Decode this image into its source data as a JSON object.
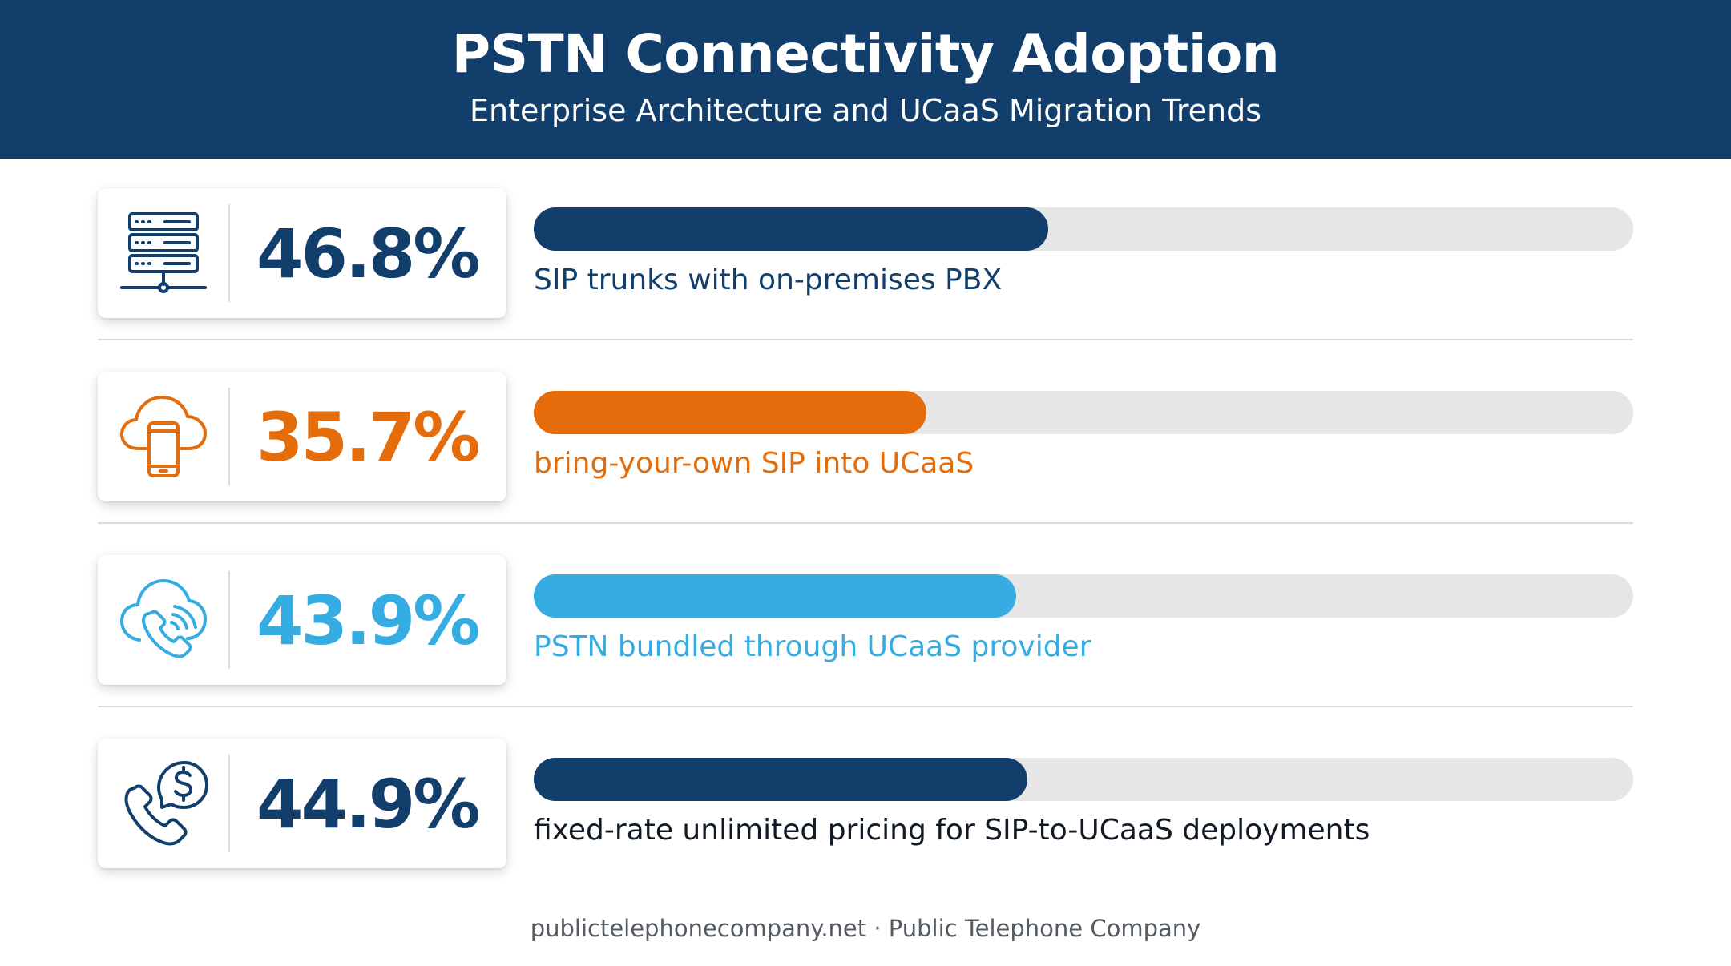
{
  "header": {
    "title": "PSTN Connectivity Adoption",
    "subtitle": "Enterprise Architecture and UCaaS Migration Trends"
  },
  "chart_data": {
    "type": "bar",
    "title": "PSTN Connectivity Adoption",
    "subtitle": "Enterprise Architecture and UCaaS Migration Trends",
    "ylim": [
      0,
      100
    ],
    "categories": [
      "SIP trunks with on-premises PBX",
      "bring-your-own SIP into UCaaS",
      "PSTN bundled through UCaaS provider",
      "fixed-rate unlimited pricing for SIP-to-UCaaS deployments"
    ],
    "values": [
      46.8,
      35.7,
      43.9,
      44.9
    ],
    "rows": [
      {
        "value": 46.8,
        "display": "46.8%",
        "label": "SIP trunks with on-premises PBX",
        "color": "#123e6c",
        "label_color": "#123e6c",
        "icon": "server-network-icon"
      },
      {
        "value": 35.7,
        "display": "35.7%",
        "label": "bring-your-own SIP into UCaaS",
        "color": "#e46c0a",
        "label_color": "#e46c0a",
        "icon": "cloud-phone-icon"
      },
      {
        "value": 43.9,
        "display": "43.9%",
        "label": "PSTN bundled through UCaaS provider",
        "color": "#35ace2",
        "label_color": "#35ace2",
        "icon": "cloud-call-icon"
      },
      {
        "value": 44.9,
        "display": "44.9%",
        "label": "fixed-rate unlimited pricing for SIP-to-UCaaS deployments",
        "color": "#123e6c",
        "label_color": "#111a24",
        "icon": "phone-dollar-icon"
      }
    ],
    "track_color": "#e6e6e6"
  },
  "footer": {
    "text": "publictelephonecompany.net · Public Telephone Company"
  }
}
